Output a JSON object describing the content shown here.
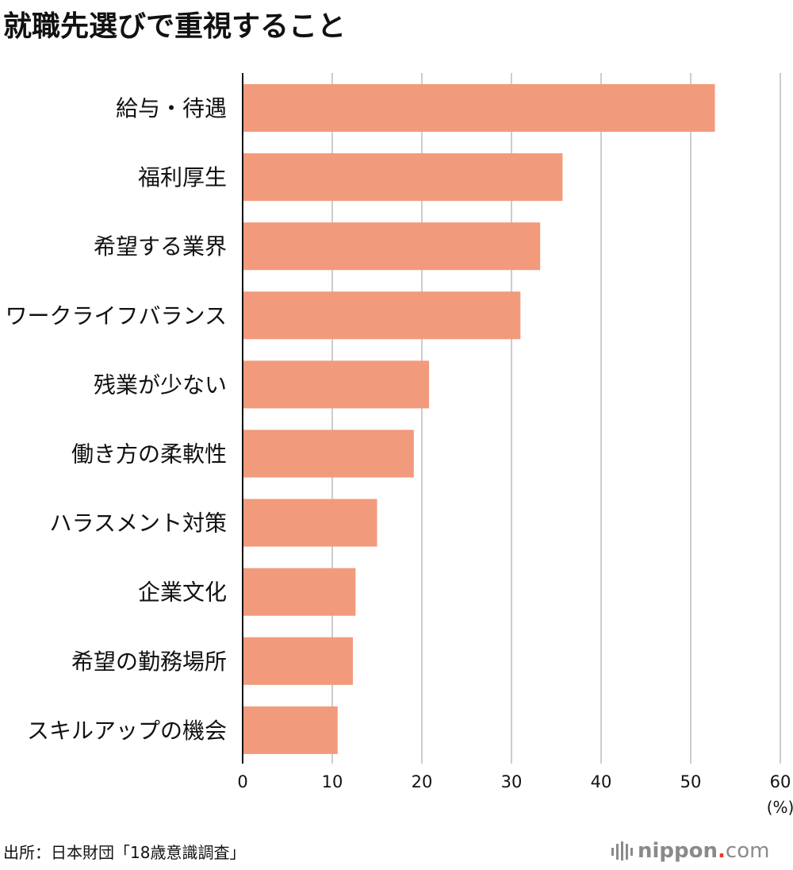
{
  "title": "就職先選びで重視すること",
  "source": "出所：日本財団「18歳意識調査」",
  "logo": {
    "name": "nippon",
    "dot": ".",
    "tld": "com"
  },
  "colors": {
    "bar": "#f29a7c",
    "grid": "#cccccc",
    "axis": "#111111",
    "logo_gray": "#8a8a8a",
    "logo_red": "#e8382f"
  },
  "chart_data": {
    "type": "bar",
    "orientation": "horizontal",
    "categories": [
      "給与・待遇",
      "福利厚生",
      "希望する業界",
      "ワークライフバランス",
      "残業が少ない",
      "働き方の柔軟性",
      "ハラスメント対策",
      "企業文化",
      "希望の勤務場所",
      "スキルアップの機会"
    ],
    "values": [
      52.7,
      35.7,
      33.2,
      31.0,
      20.8,
      19.1,
      15.0,
      12.6,
      12.3,
      10.6
    ],
    "xlim": [
      0,
      60
    ],
    "xticks": [
      0,
      10,
      20,
      30,
      40,
      50,
      60
    ],
    "xunit": "(%)",
    "grid": true
  }
}
